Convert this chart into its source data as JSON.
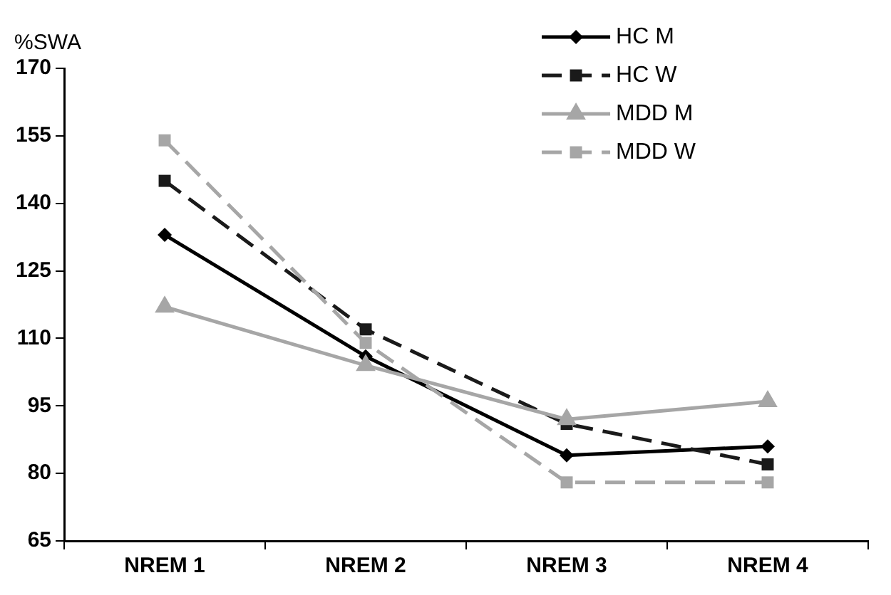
{
  "chart_data": {
    "type": "line",
    "ylabel": "%SWA",
    "categories": [
      "NREM 1",
      "NREM 2",
      "NREM 3",
      "NREM 4"
    ],
    "series": [
      {
        "name": "HC M",
        "color": "#000000",
        "marker": "diamond",
        "line_style": "solid",
        "values": [
          133,
          106,
          84,
          86
        ]
      },
      {
        "name": "HC W",
        "color": "#1a1a1a",
        "marker": "square",
        "line_style": "dashed",
        "values": [
          145,
          112,
          91,
          82
        ]
      },
      {
        "name": "MDD M",
        "color": "#a6a6a6",
        "marker": "triangle",
        "line_style": "solid",
        "values": [
          117,
          104,
          92,
          96
        ]
      },
      {
        "name": "MDD W",
        "color": "#a6a6a6",
        "marker": "square",
        "line_style": "dashed",
        "values": [
          154,
          109,
          78,
          78
        ]
      }
    ],
    "ylim": [
      65,
      170
    ],
    "yticks": [
      65,
      80,
      95,
      110,
      125,
      140,
      155,
      170
    ],
    "grid": false,
    "legend": "top right"
  }
}
